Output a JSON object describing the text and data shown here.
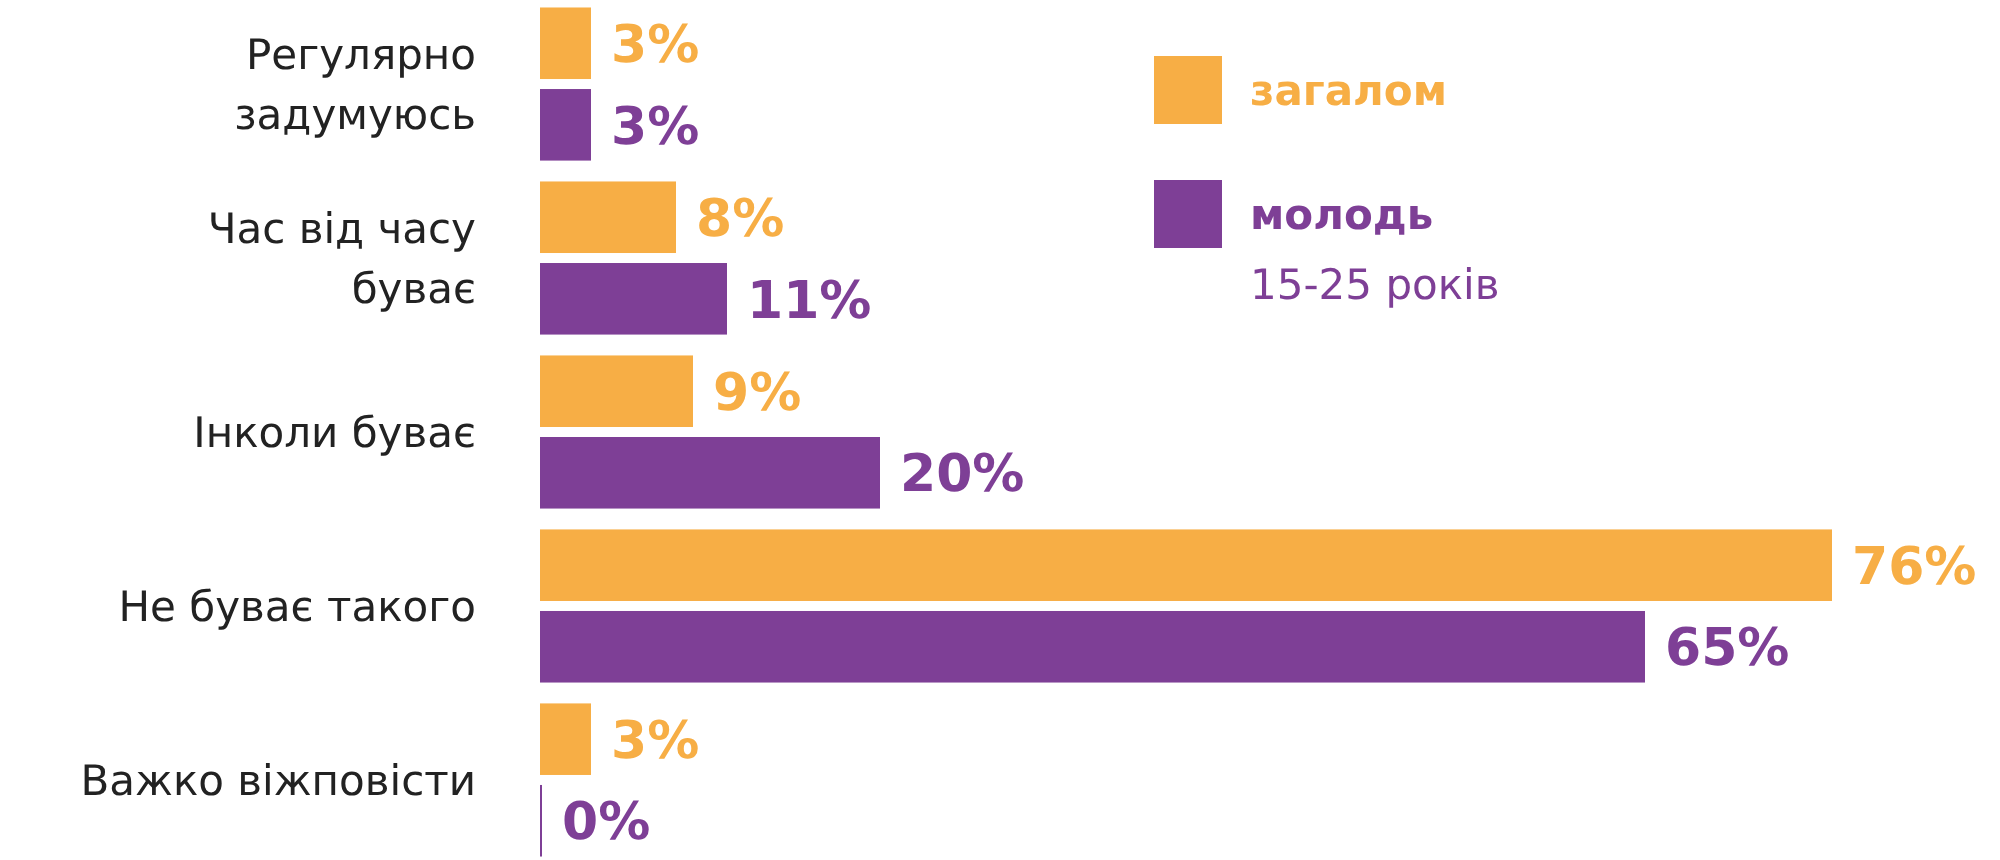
{
  "chart_data": {
    "type": "bar",
    "orientation": "horizontal",
    "categories": [
      "Регулярно задумуюсь",
      "Час від часу буває",
      "Інколи буває",
      "Не буває такого",
      "Важко віжповісти"
    ],
    "series": [
      {
        "name": "загалом",
        "color": "#f7ae45",
        "values": [
          3,
          8,
          9,
          76,
          3
        ],
        "value_labels": [
          "3%",
          "8%",
          "9%",
          "76%",
          "3%"
        ]
      },
      {
        "name": "молодь",
        "color": "#7e3f96",
        "values": [
          3,
          11,
          20,
          65,
          0
        ],
        "value_labels": [
          "3%",
          "11%",
          "20%",
          "65%",
          "0%"
        ]
      }
    ],
    "legend": "top right",
    "annotations": [
      "15-25 років"
    ]
  }
}
